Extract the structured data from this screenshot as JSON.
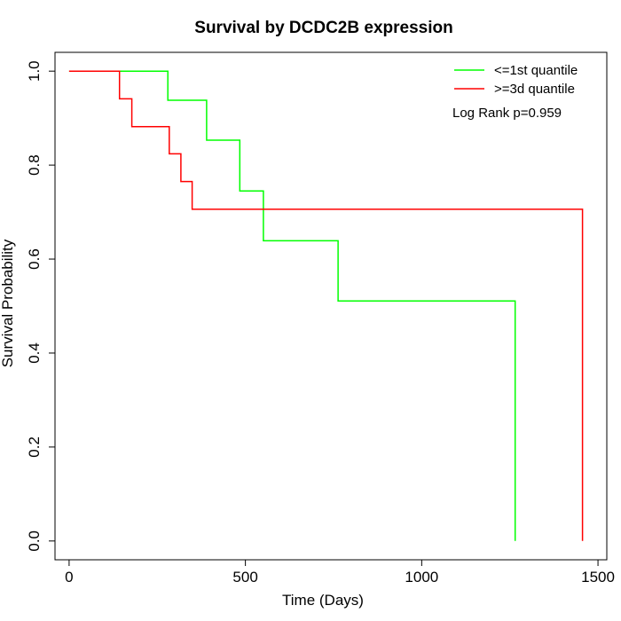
{
  "chart_data": {
    "type": "line",
    "title": "Survival by DCDC2B expression",
    "xlabel": "Time (Days)",
    "ylabel": "Survival Probability",
    "xlim": [
      -40,
      1525
    ],
    "ylim": [
      -0.04,
      1.04
    ],
    "x_ticks": [
      0,
      500,
      1000,
      1500
    ],
    "x_tick_labels": [
      "0",
      "500",
      "1000",
      "1500"
    ],
    "y_ticks": [
      0.0,
      0.2,
      0.4,
      0.6,
      0.8,
      1.0
    ],
    "y_tick_labels": [
      "0.0",
      "0.2",
      "0.4",
      "0.6",
      "0.8",
      "1.0"
    ],
    "grid": false,
    "legend_position": "top-right",
    "annotation": "Log Rank p=0.959",
    "series": [
      {
        "name": "<=1st quantile",
        "color": "#00ff00",
        "step_points": [
          [
            0,
            1.0
          ],
          [
            280,
            1.0
          ],
          [
            280,
            0.938
          ],
          [
            390,
            0.938
          ],
          [
            390,
            0.853
          ],
          [
            484,
            0.853
          ],
          [
            484,
            0.745
          ],
          [
            551,
            0.745
          ],
          [
            551,
            0.639
          ],
          [
            763,
            0.639
          ],
          [
            763,
            0.511
          ],
          [
            1265,
            0.511
          ],
          [
            1265,
            0.0
          ]
        ]
      },
      {
        "name": ">=3d quantile",
        "color": "#ff0000",
        "step_points": [
          [
            0,
            1.0
          ],
          [
            143,
            1.0
          ],
          [
            143,
            0.941
          ],
          [
            178,
            0.941
          ],
          [
            178,
            0.882
          ],
          [
            284,
            0.882
          ],
          [
            284,
            0.824
          ],
          [
            317,
            0.824
          ],
          [
            317,
            0.765
          ],
          [
            349,
            0.765
          ],
          [
            349,
            0.706
          ],
          [
            1456,
            0.706
          ],
          [
            1456,
            0.0
          ]
        ]
      }
    ]
  }
}
